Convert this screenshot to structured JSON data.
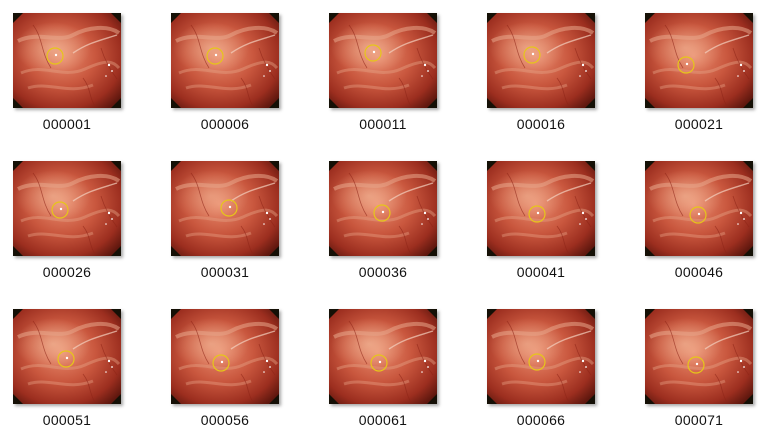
{
  "items": [
    {
      "name": "000001",
      "icon": "endoscopy-image-thumbnail"
    },
    {
      "name": "000006",
      "icon": "endoscopy-image-thumbnail"
    },
    {
      "name": "000011",
      "icon": "endoscopy-image-thumbnail"
    },
    {
      "name": "000016",
      "icon": "endoscopy-image-thumbnail"
    },
    {
      "name": "000021",
      "icon": "endoscopy-image-thumbnail"
    },
    {
      "name": "000026",
      "icon": "endoscopy-image-thumbnail"
    },
    {
      "name": "000031",
      "icon": "endoscopy-image-thumbnail"
    },
    {
      "name": "000036",
      "icon": "endoscopy-image-thumbnail"
    },
    {
      "name": "000041",
      "icon": "endoscopy-image-thumbnail"
    },
    {
      "name": "000046",
      "icon": "endoscopy-image-thumbnail"
    },
    {
      "name": "000051",
      "icon": "endoscopy-image-thumbnail"
    },
    {
      "name": "000056",
      "icon": "endoscopy-image-thumbnail"
    },
    {
      "name": "000061",
      "icon": "endoscopy-image-thumbnail"
    },
    {
      "name": "000066",
      "icon": "endoscopy-image-thumbnail"
    },
    {
      "name": "000071",
      "icon": "endoscopy-image-thumbnail"
    }
  ],
  "colors": {
    "background": "#ffffff",
    "mucosa": "#c0503a",
    "marker_circle": "#e6c619",
    "label_text": "#111111"
  }
}
